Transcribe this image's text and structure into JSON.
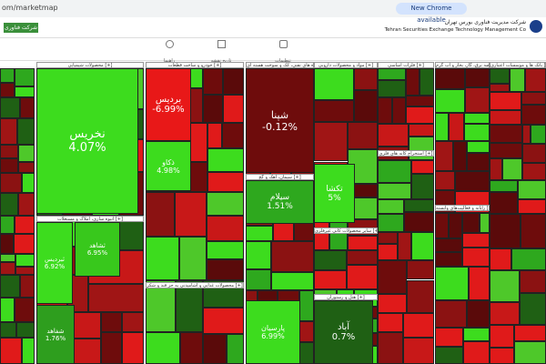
{
  "browser": {
    "url": "om/marketmap",
    "update": "New Chrome available"
  },
  "header": {
    "company_fa": "شرکت مدیریت فناوری بورس تهران",
    "company_en": "Tehran Securities Exchange Technology Management Co",
    "button": "شرکت فناوری"
  },
  "toolbar": [
    "راهنما",
    "تاریخ نقشه",
    "تنظیمات"
  ],
  "sectors": [
    "محصولات شیمیایی [+]",
    "خودرو و ساخت قطعات [+]",
    "فرآورده های نفتی، کک و سوخت هسته ای [+]",
    "مواد و محصولات دارویی [+]",
    "فلزات اساسی [+]",
    "عرضه برق، گاز، بخار و آب گرم [+]",
    "بانک ها و موسسات اعتباری [+]",
    "انبوه سازی، املاک و مستغلات [+]",
    "سیمان، آهک و گچ [+]",
    "محصولات غذایی و آشامیدنی به جز قند و شکر [+]",
    "استخراج کانه های فلزی [+]",
    "سایر محصولات کانی غیرفلزی [+]",
    "هتل و رستوران [+]",
    "رایانه و فعالیت‌های وابسته [+]"
  ],
  "tiles": [
    {
      "symbol": "نخریس",
      "change": "4.07%"
    },
    {
      "symbol": "بردیس",
      "change": "-6.99%"
    },
    {
      "symbol": "ذکاو",
      "change": "4.98%"
    },
    {
      "symbol": "شپنا",
      "change": "-0.12%"
    },
    {
      "symbol": "سیلام",
      "change": "1.51%"
    },
    {
      "symbol": "تکشا",
      "change": "5%"
    },
    {
      "symbol": "ثبردیس",
      "change": "6.92%"
    },
    {
      "symbol": "ثشاهد",
      "change": "6.95%"
    },
    {
      "symbol": "شفاهد",
      "change": "1.76%"
    },
    {
      "symbol": "پارسیان",
      "change": "6.99%"
    },
    {
      "symbol": "آباد",
      "change": "0.7%"
    }
  ]
}
